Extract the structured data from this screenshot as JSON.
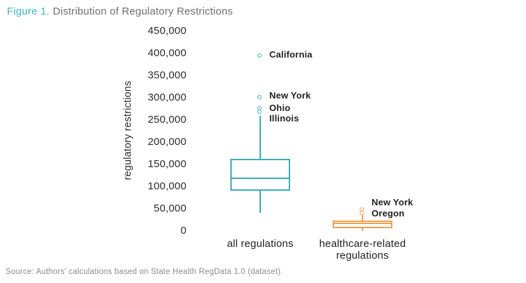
{
  "page": {
    "title": {
      "figure_label": "Figure 1.",
      "title_text": "Distribution of Regulatory Restrictions"
    },
    "source_note": "Source: Authors' calculations based on State Health RegData 1.0 (dataset)."
  },
  "colors": {
    "teal": "#38adbb",
    "orange": "#f0a14d",
    "figure_label_teal": "#3db6c2",
    "title_gray": "#6d6e70",
    "axis_text": "#2b2b2d",
    "label_dark": "#1e1e20",
    "source_gray": "#8a8c8f"
  },
  "chart_data": {
    "type": "boxplot",
    "title": "Figure 1. Distribution of Regulatory Restrictions",
    "ylabel": "regulatory restrictions",
    "xlabel": "",
    "ylim": [
      0,
      450000
    ],
    "grid": false,
    "legend": false,
    "yticks": [
      {
        "value": 450000,
        "label": "450,000"
      },
      {
        "value": 400000,
        "label": "400,000"
      },
      {
        "value": 350000,
        "label": "350,000"
      },
      {
        "value": 300000,
        "label": "300,000"
      },
      {
        "value": 250000,
        "label": "250,000"
      },
      {
        "value": 200000,
        "label": "200,000"
      },
      {
        "value": 150000,
        "label": "150,000"
      },
      {
        "value": 100000,
        "label": "100,000"
      },
      {
        "value": 50000,
        "label": "50,000"
      },
      {
        "value": 0,
        "label": "0"
      }
    ],
    "series": [
      {
        "name": "all regulations",
        "name_lines": [
          "all regulations"
        ],
        "color_key": "teal",
        "box": {
          "whisker_low": 40000,
          "q1": 91000,
          "median": 118000,
          "q3": 162000,
          "whisker_high": 260000
        },
        "outliers": [
          {
            "label": "California",
            "value": 395000,
            "label_dy": -1
          },
          {
            "label": "New York",
            "value": 302000,
            "label_dy": -2
          },
          {
            "label": "Ohio",
            "value": 277000,
            "label_dy": 0
          },
          {
            "label": "Illinois",
            "value": 268000,
            "label_dy": 10
          }
        ]
      },
      {
        "name": "healthcare-related regulations",
        "name_lines": [
          "healthcare-related",
          "regulations"
        ],
        "color_key": "orange",
        "box": {
          "whisker_low": 0,
          "q1": 7000,
          "median": 17000,
          "q3": 24000,
          "whisker_high": 37000
        },
        "outliers": [
          {
            "label": "New York",
            "value": 49000,
            "label_dy": -10
          },
          {
            "label": "Oregon",
            "value": 41000,
            "label_dy": 1
          }
        ]
      }
    ]
  }
}
